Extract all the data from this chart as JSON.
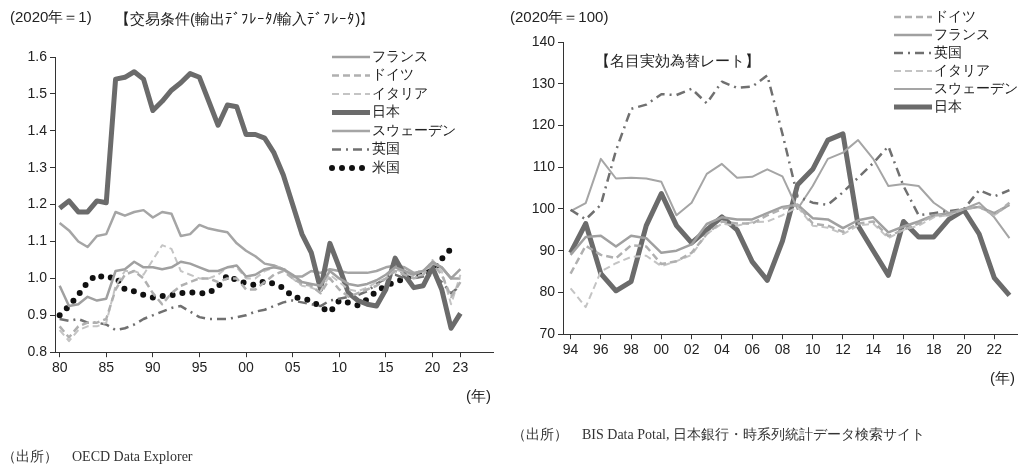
{
  "chart_data": [
    {
      "type": "line",
      "title": "【交易条件(輸出ﾃﾞﾌﾚｰﾀ/輸入ﾃﾞﾌﾚｰﾀ)】",
      "ylabel": "(2020年＝1)",
      "xlabel": "(年)",
      "x": [
        1980,
        1981,
        1982,
        1983,
        1984,
        1985,
        1986,
        1987,
        1988,
        1989,
        1990,
        1991,
        1992,
        1993,
        1994,
        1995,
        1996,
        1997,
        1998,
        1999,
        2000,
        2001,
        2002,
        2003,
        2004,
        2005,
        2006,
        2007,
        2008,
        2009,
        2010,
        2011,
        2012,
        2013,
        2014,
        2015,
        2016,
        2017,
        2018,
        2019,
        2020,
        2021,
        2022,
        2023
      ],
      "xlim": [
        1979.5,
        2026.5
      ],
      "xticks": [
        {
          "value": 1980,
          "label": "80"
        },
        {
          "value": 1985,
          "label": "85"
        },
        {
          "value": 1990,
          "label": "90"
        },
        {
          "value": 1995,
          "label": "95"
        },
        {
          "value": 2000,
          "label": "00"
        },
        {
          "value": 2005,
          "label": "05"
        },
        {
          "value": 2010,
          "label": "10"
        },
        {
          "value": 2015,
          "label": "15"
        },
        {
          "value": 2020,
          "label": "20"
        },
        {
          "value": 2023,
          "label": "23"
        }
      ],
      "ylim": [
        0.8,
        1.6
      ],
      "yticks": [
        0.8,
        0.9,
        {
          "value": 1,
          "label": "1.0"
        },
        1.1,
        1.2,
        1.3,
        1.4,
        1.5,
        1.6
      ],
      "grid": false,
      "legend": "top right",
      "series": [
        {
          "name": "フランス",
          "color": "#a0a0a0",
          "line_style": "solid",
          "values": [
            0.98,
            0.925,
            0.93,
            0.95,
            0.94,
            0.945,
            1.02,
            1.025,
            1.045,
            1.03,
            1.03,
            1.025,
            1.03,
            1.045,
            1.04,
            1.03,
            1.02,
            1.02,
            1.03,
            1.035,
            1.005,
            1.01,
            1.025,
            1.03,
            1.025,
            1.01,
            0.99,
            0.985,
            0.98,
            1.02,
            1.0,
            0.985,
            0.98,
            0.985,
            0.995,
            1.01,
            1.03,
            1.02,
            1.01,
            1.02,
            1.045,
            1.03,
            1.0,
            1.025
          ]
        },
        {
          "name": "ドイツ",
          "color": "#b0b0b0",
          "line_style": "dashed",
          "values": [
            0.87,
            0.84,
            0.87,
            0.88,
            0.88,
            0.89,
            0.97,
            1.01,
            1.02,
            1.0,
            0.96,
            0.93,
            0.96,
            0.98,
            0.99,
            1.0,
            1.0,
            0.99,
            1.0,
            1.0,
            0.97,
            0.97,
            0.99,
            1.01,
            1.02,
            1.0,
            0.985,
            0.98,
            0.96,
            1.0,
            0.97,
            0.95,
            0.96,
            0.97,
            0.98,
            1.0,
            1.02,
            1.01,
            1.0,
            1.01,
            1.04,
            1.01,
            0.95,
            0.99
          ]
        },
        {
          "name": "イタリア",
          "color": "#c4c4c4",
          "line_style": "dashed",
          "values": [
            0.86,
            0.83,
            0.86,
            0.87,
            0.87,
            0.88,
            0.98,
            1.02,
            1.02,
            1.01,
            1.05,
            1.09,
            1.08,
            1.02,
            1.01,
            1.0,
            1.0,
            1.01,
            1.03,
            1.03,
            1.0,
            1.0,
            1.02,
            1.03,
            1.03,
            1.0,
            0.98,
            0.975,
            0.965,
            1.01,
            0.99,
            0.97,
            0.965,
            0.975,
            0.99,
            1.0,
            1.025,
            1.015,
            1.005,
            1.01,
            1.05,
            1.02,
            0.93,
            1.01
          ]
        },
        {
          "name": "日本",
          "color": "#6b6b6b",
          "line_style": "solid",
          "values": [
            1.19,
            1.21,
            1.18,
            1.18,
            1.21,
            1.205,
            1.54,
            1.545,
            1.56,
            1.54,
            1.455,
            1.48,
            1.51,
            1.53,
            1.555,
            1.545,
            1.48,
            1.415,
            1.47,
            1.465,
            1.39,
            1.39,
            1.38,
            1.34,
            1.28,
            1.2,
            1.12,
            1.07,
            0.97,
            1.095,
            1.03,
            0.96,
            0.94,
            0.93,
            0.925,
            0.97,
            1.055,
            1.01,
            0.975,
            0.98,
            1.03,
            0.97,
            0.865,
            0.905
          ]
        },
        {
          "name": "スウェーデン",
          "color": "#a5a5a5",
          "line_style": "solid",
          "values": [
            1.15,
            1.13,
            1.1,
            1.085,
            1.115,
            1.12,
            1.18,
            1.17,
            1.18,
            1.185,
            1.165,
            1.18,
            1.175,
            1.115,
            1.12,
            1.145,
            1.135,
            1.13,
            1.125,
            1.095,
            1.075,
            1.06,
            1.04,
            1.035,
            1.025,
            1.005,
            1.005,
            1.02,
            1.015,
            1.025,
            1.02,
            1.015,
            1.015,
            1.015,
            1.02,
            1.03,
            1.035,
            1.03,
            1.015,
            1.02,
            1.04,
            1.03,
            1.0,
            1.0
          ]
        },
        {
          "name": "英国",
          "color": "#707070",
          "line_style": "dashdot",
          "values": [
            0.89,
            0.885,
            0.89,
            0.88,
            0.88,
            0.875,
            0.86,
            0.865,
            0.875,
            0.89,
            0.9,
            0.91,
            0.92,
            0.925,
            0.91,
            0.895,
            0.89,
            0.89,
            0.89,
            0.895,
            0.9,
            0.91,
            0.915,
            0.925,
            0.935,
            0.94,
            0.935,
            0.93,
            0.925,
            0.94,
            0.945,
            0.95,
            0.955,
            0.965,
            0.985,
            1.0,
            1.01,
            1.0,
            1.0,
            1.005,
            1.01,
            0.99,
            0.96,
            0.98
          ]
        },
        {
          "name": "米国",
          "color": "#111111",
          "line_style": "dotted",
          "values": [
            0.9,
            0.925,
            0.955,
            0.99,
            1.01,
            1.0,
            1.005,
            0.97,
            0.965,
            0.955,
            0.948,
            0.952,
            0.954,
            0.96,
            0.962,
            0.96,
            0.96,
            0.978,
            1.008,
            0.995,
            0.987,
            0.982,
            0.993,
            0.985,
            0.974,
            0.95,
            0.945,
            0.94,
            0.922,
            0.908,
            0.94,
            0.934,
            0.927,
            0.943,
            0.965,
            0.98,
            0.99,
            1.0,
            1.01,
            1.015,
            1.02,
            1.053,
            1.08,
            null
          ]
        }
      ],
      "annotations": [
        "（出所）　OECD Data Explorer"
      ]
    },
    {
      "type": "line",
      "title": "【名目実効為替レート】",
      "ylabel": "(2020年＝100)",
      "xlabel": "(年)",
      "x": [
        1994,
        1995,
        1996,
        1997,
        1998,
        1999,
        2000,
        2001,
        2002,
        2003,
        2004,
        2005,
        2006,
        2007,
        2008,
        2009,
        2010,
        2011,
        2012,
        2013,
        2014,
        2015,
        2016,
        2017,
        2018,
        2019,
        2020,
        2021,
        2022,
        2023
      ],
      "xlim": [
        1993.5,
        2023.5
      ],
      "xticks": [
        {
          "value": 1994,
          "label": "94"
        },
        {
          "value": 1996,
          "label": "96"
        },
        {
          "value": 1998,
          "label": "98"
        },
        {
          "value": 2000,
          "label": "00"
        },
        {
          "value": 2002,
          "label": "02"
        },
        {
          "value": 2004,
          "label": "04"
        },
        {
          "value": 2006,
          "label": "06"
        },
        {
          "value": 2008,
          "label": "08"
        },
        {
          "value": 2010,
          "label": "10"
        },
        {
          "value": 2012,
          "label": "12"
        },
        {
          "value": 2014,
          "label": "14"
        },
        {
          "value": 2016,
          "label": "16"
        },
        {
          "value": 2018,
          "label": "18"
        },
        {
          "value": 2020,
          "label": "20"
        },
        {
          "value": 2022,
          "label": "22"
        }
      ],
      "ylim": [
        70,
        140
      ],
      "yticks": [
        70,
        80,
        90,
        100,
        110,
        120,
        130,
        140
      ],
      "grid": false,
      "legend": "top right",
      "series": [
        {
          "name": "ドイツ",
          "color": "#b0b0b0",
          "line_style": "dashed",
          "values": [
            84.5,
            91.2,
            89,
            88.2,
            91.3,
            91,
            86.8,
            87.5,
            89.5,
            94,
            97,
            96.5,
            96.5,
            98.5,
            100,
            101,
            96.5,
            96,
            94.5,
            96.5,
            97,
            93.5,
            95,
            96.5,
            98.5,
            98.5,
            100,
            100.5,
            98.5,
            101.5
          ]
        },
        {
          "name": "フランス",
          "color": "#a0a0a0",
          "line_style": "solid",
          "values": [
            89,
            93.3,
            93.6,
            91,
            93.6,
            93,
            89.5,
            90,
            91.5,
            96.4,
            98,
            97.5,
            97.5,
            99,
            100.5,
            101,
            97.8,
            97.5,
            95.4,
            97.3,
            98,
            94.4,
            95.8,
            97,
            98.5,
            99,
            100,
            100.5,
            99,
            101
          ]
        },
        {
          "name": "英国",
          "color": "#707070",
          "line_style": "dashdot",
          "values": [
            99.8,
            97.5,
            101,
            114,
            124,
            125,
            127.5,
            127.3,
            128.8,
            125.3,
            130.5,
            129,
            129.3,
            132,
            118,
            103,
            101.5,
            101,
            104,
            107.5,
            111,
            115,
            105.5,
            98.5,
            99,
            99.5,
            100,
            104.5,
            103,
            104.5
          ]
        },
        {
          "name": "イタリア",
          "color": "#c4c4c4",
          "line_style": "dashed",
          "values": [
            81,
            76.5,
            85,
            87,
            88.5,
            88.8,
            86.3,
            87.5,
            89,
            94,
            96.5,
            96,
            96.8,
            97,
            98.5,
            100.5,
            96,
            95.5,
            94,
            96,
            96.5,
            93,
            95,
            96,
            98,
            98.5,
            100,
            100.5,
            98.5,
            101
          ]
        },
        {
          "name": "スウェーデン",
          "color": "#a5a5a5",
          "line_style": "solid",
          "values": [
            99.5,
            101.4,
            112,
            107.3,
            107.5,
            107.3,
            106.5,
            98.5,
            101.5,
            108.4,
            110.8,
            107.5,
            107.7,
            109.5,
            107.8,
            100,
            105.5,
            112,
            113.5,
            116.5,
            112,
            105.5,
            106,
            105.5,
            101.5,
            99,
            100,
            101.5,
            98,
            93
          ]
        },
        {
          "name": "日本",
          "color": "#6b6b6b",
          "line_style": "solid",
          "values": [
            89.5,
            96.5,
            84.5,
            80.4,
            82.6,
            96,
            103.7,
            96,
            91.9,
            95,
            98.1,
            95,
            87.4,
            82.9,
            92.3,
            105.8,
            109.5,
            116.5,
            118,
            96,
            90,
            84.1,
            97,
            93.3,
            93.3,
            97.5,
            99.7,
            94,
            83.5,
            79.3
          ]
        }
      ],
      "annotations": [
        "（出所）　BIS Data Potal, 日本銀行・時系列統計データ検索サイト"
      ]
    }
  ]
}
